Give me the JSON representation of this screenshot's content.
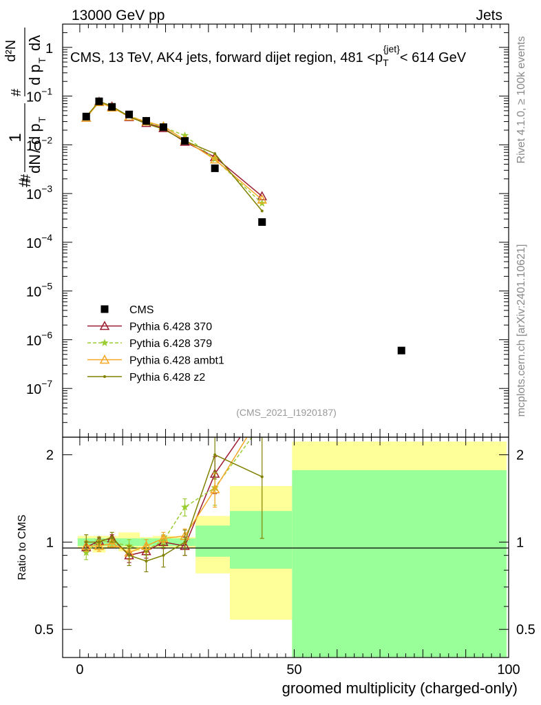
{
  "header": {
    "left": "13000 GeV pp",
    "right": "Jets"
  },
  "side_labels": {
    "rivet": "Rivet 4.1.0, ≥ 100k events",
    "mcplots": "mcplots.cern.ch [arXiv:2401.10621]"
  },
  "analysis_id": "(CMS_2021_I1920187)",
  "chart_data": [
    {
      "type": "scatter",
      "panel": "main",
      "title_parts": {
        "pre": "CMS, 13 TeV, AK4 jets, forward dijet region, 481 <p",
        "sub": "T",
        "sup": "{jet}",
        "post": "< 614 GeV"
      },
      "ylabel_parts": {
        "hash": "#",
        "one": "1",
        "dN": "dN",
        "dpT": "d p",
        "T": "T",
        "d2N": "d²N",
        "dpTdl": "d p",
        "dl": "dλ"
      },
      "yscale": "log",
      "ylim": [
        1e-08,
        3
      ],
      "xlim": [
        -4,
        100
      ],
      "y_ticks": [
        {
          "v": 1e-07,
          "base": "10",
          "exp": "−7"
        },
        {
          "v": 1e-06,
          "base": "10",
          "exp": "−6"
        },
        {
          "v": 1e-05,
          "base": "10",
          "exp": "−5"
        },
        {
          "v": 0.0001,
          "base": "10",
          "exp": "−4"
        },
        {
          "v": 0.001,
          "base": "10",
          "exp": "−3"
        },
        {
          "v": 0.01,
          "base": "10",
          "exp": "−2"
        },
        {
          "v": 0.1,
          "base": "10",
          "exp": "−1"
        },
        {
          "v": 1,
          "base": "1",
          "exp": ""
        }
      ],
      "series": [
        {
          "name": "CMS",
          "color": "#000000",
          "style": "square",
          "x": [
            1.5,
            4.5,
            7.5,
            11.5,
            15.5,
            19.5,
            24.5,
            31.5,
            42.5,
            75
          ],
          "y": [
            0.038,
            0.078,
            0.06,
            0.042,
            0.031,
            0.023,
            0.012,
            0.0033,
            0.00026,
            6e-07
          ]
        },
        {
          "name": "Pythia 6.428 370",
          "color": "#9b1b30",
          "style": "line-triangle-open",
          "x": [
            1.5,
            4.5,
            7.5,
            11.5,
            15.5,
            19.5,
            24.5,
            31.5,
            42.5
          ],
          "y": [
            0.036,
            0.077,
            0.061,
            0.037,
            0.028,
            0.022,
            0.0115,
            0.0056,
            0.00088
          ]
        },
        {
          "name": "Pythia 6.428 379",
          "color": "#9acd32",
          "style": "dashed-star",
          "x": [
            1.5,
            4.5,
            7.5,
            11.5,
            15.5,
            19.5,
            24.5,
            31.5,
            42.5
          ],
          "y": [
            0.035,
            0.079,
            0.059,
            0.04,
            0.029,
            0.023,
            0.0155,
            0.0051,
            0.00063
          ]
        },
        {
          "name": "Pythia 6.428 ambt1",
          "color": "#f5a623",
          "style": "line-triangle-open",
          "x": [
            1.5,
            4.5,
            7.5,
            11.5,
            15.5,
            19.5,
            24.5,
            31.5,
            42.5
          ],
          "y": [
            0.036,
            0.075,
            0.058,
            0.038,
            0.03,
            0.024,
            0.0125,
            0.005,
            0.00075
          ]
        },
        {
          "name": "Pythia 6.428 z2",
          "color": "#808000",
          "style": "line-dot",
          "x": [
            1.5,
            4.5,
            7.5,
            11.5,
            15.5,
            19.5,
            24.5,
            31.5,
            42.5
          ],
          "y": [
            0.038,
            0.078,
            0.062,
            0.038,
            0.027,
            0.021,
            0.012,
            0.0066,
            0.00044
          ]
        }
      ]
    },
    {
      "type": "line",
      "panel": "ratio",
      "ylabel": "Ratio to CMS",
      "xlabel": "groomed multiplicity (charged-only)",
      "xlim": [
        -4,
        100
      ],
      "ylim": [
        0.4,
        2.3
      ],
      "yscale": "log",
      "x_tick_labels": [
        "0",
        "50",
        "100"
      ],
      "x_ticks": [
        0,
        50,
        100
      ],
      "y_tick_labels": [
        "0.5",
        "1",
        "2"
      ],
      "y_ticks": [
        0.5,
        1,
        2
      ],
      "cms_bands": [
        {
          "x0": -0.5,
          "x1": 3,
          "inner": [
            0.97,
            1.03
          ],
          "outer": [
            0.95,
            1.05
          ]
        },
        {
          "x0": 3,
          "x1": 6,
          "inner": [
            0.97,
            1.03
          ],
          "outer": [
            0.92,
            1.05
          ]
        },
        {
          "x0": 6,
          "x1": 9,
          "inner": [
            0.97,
            1.03
          ],
          "outer": [
            0.95,
            1.05
          ]
        },
        {
          "x0": 9,
          "x1": 14,
          "inner": [
            0.97,
            1.03
          ],
          "outer": [
            0.93,
            1.08
          ]
        },
        {
          "x0": 14,
          "x1": 17,
          "inner": [
            0.97,
            1.03
          ],
          "outer": [
            0.95,
            1.04
          ]
        },
        {
          "x0": 17,
          "x1": 22,
          "inner": [
            0.97,
            1.03
          ],
          "outer": [
            0.95,
            1.05
          ]
        },
        {
          "x0": 22,
          "x1": 27,
          "inner": [
            0.97,
            1.03
          ],
          "outer": [
            0.95,
            1.04
          ]
        },
        {
          "x0": 27,
          "x1": 35,
          "inner": [
            0.89,
            1.14
          ],
          "outer": [
            0.78,
            1.23
          ]
        },
        {
          "x0": 35,
          "x1": 49.5,
          "inner": [
            0.81,
            1.28
          ],
          "outer": [
            0.54,
            1.56
          ]
        },
        {
          "x0": 49.5,
          "x1": 99.5,
          "inner": [
            0.4,
            1.77
          ],
          "outer": [
            0.4,
            2.22
          ]
        }
      ],
      "series": [
        {
          "name": "Pythia 6.428 370",
          "color": "#9b1b30",
          "x": [
            1.5,
            4.5,
            7.5,
            11.5,
            15.5,
            19.5,
            24.5,
            31.5,
            39.5
          ],
          "y": [
            0.96,
            1.01,
            1.03,
            0.9,
            0.93,
            1.0,
            0.97,
            1.72,
            2.55
          ],
          "err": [
            0.04,
            0.03,
            0.03,
            0.05,
            0.05,
            0.05,
            0.07,
            0.25,
            0
          ]
        },
        {
          "name": "Pythia 6.428 379",
          "color": "#9acd32",
          "x": [
            1.5,
            4.5,
            7.5,
            11.5,
            15.5,
            19.5,
            24.5,
            31.5,
            41.5
          ],
          "y": [
            0.92,
            1.01,
            1.0,
            0.97,
            0.94,
            1.01,
            1.32,
            1.54,
            2.45
          ],
          "err": [
            0.05,
            0.03,
            0.03,
            0.05,
            0.04,
            0.05,
            0.09,
            0.2,
            0
          ]
        },
        {
          "name": "Pythia 6.428 ambt1",
          "color": "#f5a623",
          "x": [
            1.5,
            4.5,
            7.5,
            11.5,
            15.5,
            19.5,
            24.5,
            31.5,
            40.5
          ],
          "y": [
            0.97,
            0.97,
            0.99,
            0.92,
            0.97,
            1.03,
            1.05,
            1.52,
            2.5
          ],
          "err": [
            0.04,
            0.04,
            0.03,
            0.05,
            0.05,
            0.05,
            0.06,
            0.2,
            0
          ]
        },
        {
          "name": "Pythia 6.428 z2",
          "color": "#808000",
          "x": [
            1.5,
            4.5,
            7.5,
            11.5,
            15.5,
            19.5,
            24.5,
            31.5,
            42.5
          ],
          "y": [
            1.0,
            1.0,
            1.04,
            0.9,
            0.86,
            0.9,
            1.0,
            2.0,
            1.68
          ],
          "err": [
            0.06,
            0.04,
            0.04,
            0.07,
            0.07,
            0.08,
            0.1,
            0.35,
            0.65
          ]
        }
      ]
    }
  ]
}
